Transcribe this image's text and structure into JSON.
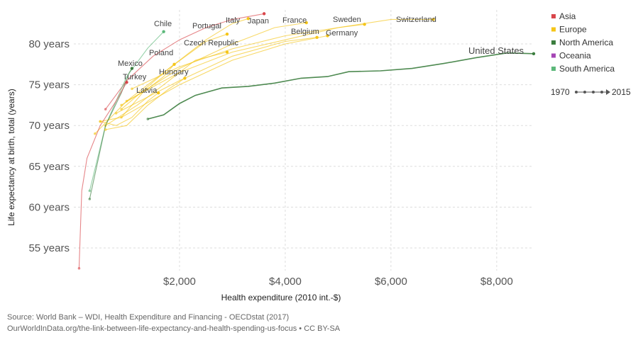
{
  "chart_data": {
    "type": "line",
    "xlabel": "Health expenditure (2010 int.-$)",
    "ylabel": "Life expectancy at birth, total (years)",
    "xlim": [
      0,
      8700
    ],
    "ylim": [
      52,
      84
    ],
    "x_ticks": [
      2000,
      4000,
      6000,
      8000
    ],
    "x_tick_labels": [
      "$2,000",
      "$4,000",
      "$6,000",
      "$8,000"
    ],
    "y_ticks": [
      55,
      60,
      65,
      70,
      75,
      80
    ],
    "y_tick_labels": [
      "55 years",
      "60 years",
      "65 years",
      "70 years",
      "75 years",
      "80 years"
    ],
    "grid": "dashed",
    "legend_position": "right",
    "legend": [
      {
        "label": "Asia",
        "color": "#d9454a"
      },
      {
        "label": "Europe",
        "color": "#f5c518"
      },
      {
        "label": "North America",
        "color": "#3b7d3e"
      },
      {
        "label": "Oceania",
        "color": "#a546b5"
      },
      {
        "label": "South America",
        "color": "#5cb87a"
      }
    ],
    "time_range": {
      "start": "1970",
      "end": "2015"
    },
    "series": [
      {
        "name": "United States",
        "region": "North America",
        "highlight": true,
        "points": [
          [
            1400,
            70.8
          ],
          [
            1700,
            71.3
          ],
          [
            2000,
            72.7
          ],
          [
            2300,
            73.7
          ],
          [
            2800,
            74.6
          ],
          [
            3300,
            74.8
          ],
          [
            3800,
            75.2
          ],
          [
            4300,
            75.8
          ],
          [
            4800,
            76.0
          ],
          [
            5200,
            76.6
          ],
          [
            5800,
            76.7
          ],
          [
            6400,
            77.0
          ],
          [
            7000,
            77.6
          ],
          [
            7600,
            78.3
          ],
          [
            8200,
            78.9
          ],
          [
            8700,
            78.8
          ]
        ]
      },
      {
        "name": "Switzerland",
        "region": "Europe",
        "points": [
          [
            1000,
            73.0
          ],
          [
            2000,
            76.5
          ],
          [
            3000,
            79.0
          ],
          [
            4000,
            80.5
          ],
          [
            5000,
            82.0
          ],
          [
            6000,
            83.0
          ],
          [
            6800,
            83.0
          ]
        ]
      },
      {
        "name": "Sweden",
        "region": "Europe",
        "points": [
          [
            1100,
            74.5
          ],
          [
            2000,
            77.2
          ],
          [
            3000,
            79.4
          ],
          [
            4000,
            81.0
          ],
          [
            5000,
            82.0
          ],
          [
            5500,
            82.4
          ]
        ]
      },
      {
        "name": "Germany",
        "region": "Europe",
        "points": [
          [
            900,
            71.0
          ],
          [
            2000,
            75.0
          ],
          [
            3000,
            78.0
          ],
          [
            4000,
            80.0
          ],
          [
            4800,
            81.0
          ]
        ]
      },
      {
        "name": "Belgium",
        "region": "Europe",
        "points": [
          [
            800,
            71.5
          ],
          [
            2000,
            75.5
          ],
          [
            3000,
            78.5
          ],
          [
            4000,
            80.3
          ],
          [
            4600,
            80.8
          ]
        ]
      },
      {
        "name": "France",
        "region": "Europe",
        "points": [
          [
            900,
            72.5
          ],
          [
            2000,
            77.0
          ],
          [
            3000,
            80.0
          ],
          [
            3800,
            82.0
          ],
          [
            4400,
            82.6
          ]
        ]
      },
      {
        "name": "Japan",
        "region": "Asia",
        "points": [
          [
            600,
            72.0
          ],
          [
            1000,
            75.5
          ],
          [
            1500,
            78.5
          ],
          [
            2000,
            80.5
          ],
          [
            2500,
            82.0
          ],
          [
            3000,
            83.0
          ],
          [
            3600,
            83.7
          ]
        ]
      },
      {
        "name": "Italy",
        "region": "Europe",
        "points": [
          [
            900,
            72.0
          ],
          [
            1800,
            77.0
          ],
          [
            2500,
            80.5
          ],
          [
            3000,
            82.5
          ],
          [
            3300,
            83.1
          ]
        ]
      },
      {
        "name": "Portugal",
        "region": "Europe",
        "points": [
          [
            400,
            69.0
          ],
          [
            1000,
            73.0
          ],
          [
            1800,
            77.0
          ],
          [
            2500,
            80.3
          ],
          [
            2900,
            81.2
          ]
        ]
      },
      {
        "name": "Chile",
        "region": "South America",
        "points": [
          [
            300,
            62.0
          ],
          [
            600,
            70.0
          ],
          [
            1000,
            76.0
          ],
          [
            1400,
            79.5
          ],
          [
            1700,
            81.5
          ]
        ]
      },
      {
        "name": "Czech Republic",
        "region": "Europe",
        "points": [
          [
            600,
            70.0
          ],
          [
            1200,
            72.5
          ],
          [
            1800,
            75.5
          ],
          [
            2300,
            78.0
          ],
          [
            2900,
            79.0
          ]
        ]
      },
      {
        "name": "Poland",
        "region": "Europe",
        "points": [
          [
            500,
            70.5
          ],
          [
            900,
            71.0
          ],
          [
            1300,
            74.0
          ],
          [
            1700,
            76.0
          ],
          [
            1900,
            77.5
          ]
        ]
      },
      {
        "name": "Mexico",
        "region": "North America",
        "points": [
          [
            300,
            61.0
          ],
          [
            600,
            70.0
          ],
          [
            900,
            74.0
          ],
          [
            1050,
            76.5
          ],
          [
            1100,
            77.0
          ]
        ]
      },
      {
        "name": "Hungary",
        "region": "Europe",
        "points": [
          [
            600,
            69.5
          ],
          [
            1000,
            70.0
          ],
          [
            1400,
            72.5
          ],
          [
            1800,
            74.5
          ],
          [
            2100,
            75.8
          ]
        ]
      },
      {
        "name": "Turkey",
        "region": "Asia",
        "points": [
          [
            100,
            52.5
          ],
          [
            150,
            62.0
          ],
          [
            250,
            66.0
          ],
          [
            500,
            70.0
          ],
          [
            800,
            73.0
          ],
          [
            1000,
            75.3
          ]
        ]
      },
      {
        "name": "Latvia",
        "region": "Europe",
        "points": [
          [
            500,
            70.5
          ],
          [
            800,
            70.0
          ],
          [
            1100,
            71.0
          ],
          [
            1400,
            73.0
          ],
          [
            1600,
            74.0
          ]
        ]
      }
    ],
    "labels": [
      "Chile",
      "Portugal",
      "Italy",
      "Japan",
      "France",
      "Sweden",
      "Switzerland",
      "Belgium",
      "Germany",
      "Czech Republic",
      "Poland",
      "Mexico",
      "Hungary",
      "Turkey",
      "Latvia",
      "United States"
    ]
  },
  "footer": {
    "source": "Source: World Bank – WDI, Health Expenditure and Financing - OECDstat (2017)",
    "url": "OurWorldInData.org/the-link-between-life-expectancy-and-health-spending-us-focus • CC BY-SA"
  }
}
